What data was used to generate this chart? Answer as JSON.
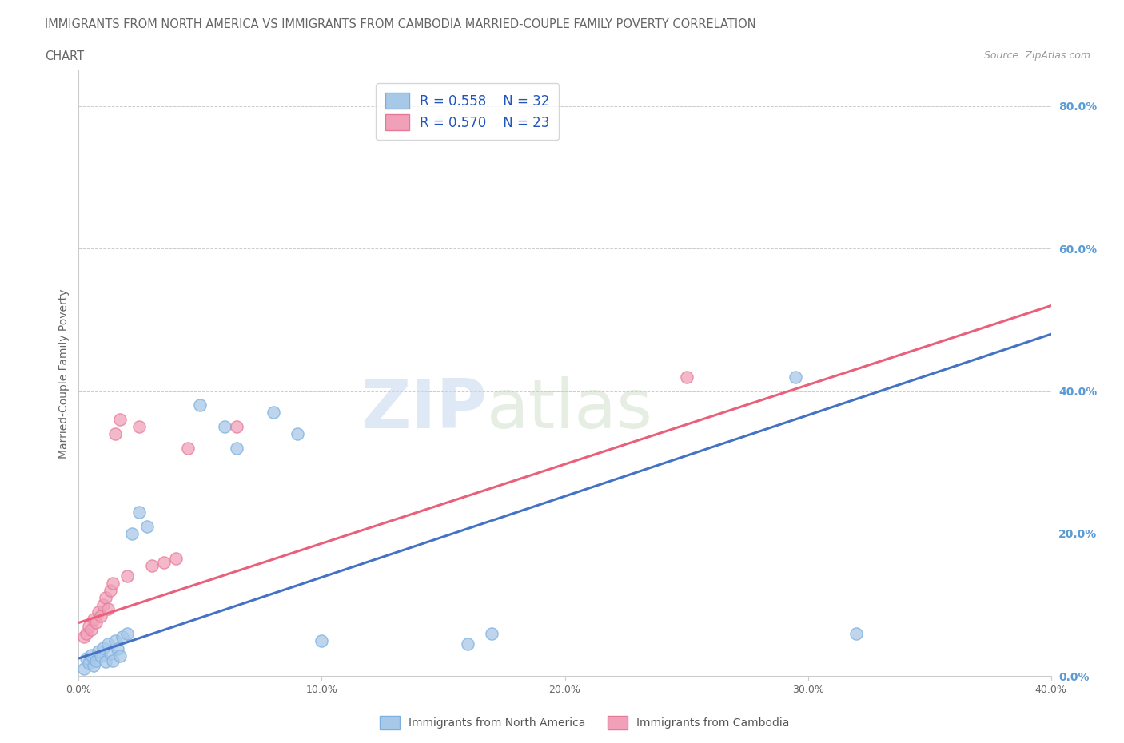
{
  "title_line1": "IMMIGRANTS FROM NORTH AMERICA VS IMMIGRANTS FROM CAMBODIA MARRIED-COUPLE FAMILY POVERTY CORRELATION",
  "title_line2": "CHART",
  "source": "Source: ZipAtlas.com",
  "ylabel": "Married-Couple Family Poverty",
  "R_blue": 0.558,
  "N_blue": 32,
  "R_pink": 0.57,
  "N_pink": 23,
  "xlim": [
    0,
    0.4
  ],
  "ylim": [
    0,
    0.85
  ],
  "yticks": [
    0.0,
    0.2,
    0.4,
    0.6,
    0.8
  ],
  "ytick_labels": [
    "0.0%",
    "20.0%",
    "40.0%",
    "60.0%",
    "80.0%"
  ],
  "xticks": [
    0.0,
    0.1,
    0.2,
    0.3,
    0.4
  ],
  "xtick_labels": [
    "0.0%",
    "10.0%",
    "20.0%",
    "30.0%",
    "40.0%"
  ],
  "blue_color": "#a8c8e8",
  "pink_color": "#f0a0b8",
  "blue_line_color": "#4472C4",
  "pink_line_color": "#E8607A",
  "blue_scatter": [
    [
      0.002,
      0.01
    ],
    [
      0.003,
      0.025
    ],
    [
      0.004,
      0.018
    ],
    [
      0.005,
      0.03
    ],
    [
      0.006,
      0.015
    ],
    [
      0.007,
      0.022
    ],
    [
      0.008,
      0.035
    ],
    [
      0.009,
      0.028
    ],
    [
      0.01,
      0.04
    ],
    [
      0.011,
      0.02
    ],
    [
      0.012,
      0.045
    ],
    [
      0.013,
      0.032
    ],
    [
      0.014,
      0.022
    ],
    [
      0.015,
      0.05
    ],
    [
      0.016,
      0.038
    ],
    [
      0.017,
      0.028
    ],
    [
      0.018,
      0.055
    ],
    [
      0.02,
      0.06
    ],
    [
      0.022,
      0.2
    ],
    [
      0.025,
      0.23
    ],
    [
      0.028,
      0.21
    ],
    [
      0.05,
      0.38
    ],
    [
      0.06,
      0.35
    ],
    [
      0.065,
      0.32
    ],
    [
      0.08,
      0.37
    ],
    [
      0.09,
      0.34
    ],
    [
      0.1,
      0.05
    ],
    [
      0.13,
      0.78
    ],
    [
      0.16,
      0.045
    ],
    [
      0.17,
      0.06
    ],
    [
      0.295,
      0.42
    ],
    [
      0.32,
      0.06
    ]
  ],
  "pink_scatter": [
    [
      0.002,
      0.055
    ],
    [
      0.003,
      0.06
    ],
    [
      0.004,
      0.07
    ],
    [
      0.005,
      0.065
    ],
    [
      0.006,
      0.08
    ],
    [
      0.007,
      0.075
    ],
    [
      0.008,
      0.09
    ],
    [
      0.009,
      0.085
    ],
    [
      0.01,
      0.1
    ],
    [
      0.011,
      0.11
    ],
    [
      0.012,
      0.095
    ],
    [
      0.013,
      0.12
    ],
    [
      0.014,
      0.13
    ],
    [
      0.015,
      0.34
    ],
    [
      0.017,
      0.36
    ],
    [
      0.02,
      0.14
    ],
    [
      0.025,
      0.35
    ],
    [
      0.03,
      0.155
    ],
    [
      0.035,
      0.16
    ],
    [
      0.04,
      0.165
    ],
    [
      0.045,
      0.32
    ],
    [
      0.065,
      0.35
    ],
    [
      0.25,
      0.42
    ]
  ],
  "blue_line": {
    "x0": 0.0,
    "y0": 0.025,
    "x1": 0.4,
    "y1": 0.48
  },
  "pink_line": {
    "x0": 0.0,
    "y0": 0.075,
    "x1": 0.4,
    "y1": 0.52
  },
  "watermark_zip": "ZIP",
  "watermark_atlas": "atlas",
  "background_color": "#ffffff",
  "grid_color": "#cccccc"
}
